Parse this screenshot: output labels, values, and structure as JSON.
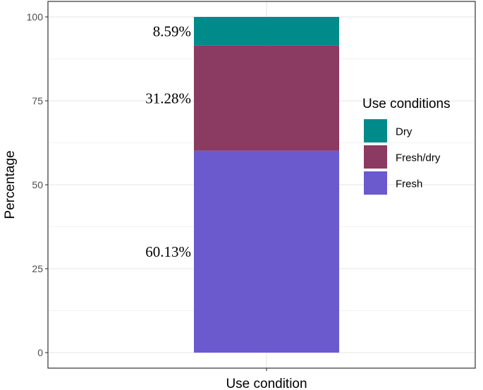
{
  "chart_data": {
    "type": "bar",
    "stacked": true,
    "categories": [
      "Use condition"
    ],
    "xlabel": "Use condition",
    "ylabel": "Percentage",
    "ylim": [
      0,
      100
    ],
    "yticks": [
      0,
      25,
      50,
      75,
      100
    ],
    "grid": true,
    "legend": {
      "title": "Use conditions",
      "placement": "right",
      "entries": [
        "Dry",
        "Fresh/dry",
        "Fresh"
      ]
    },
    "series": [
      {
        "name": "Fresh",
        "values": [
          60.13
        ],
        "label": "60.13%",
        "color": "#6a5acd"
      },
      {
        "name": "Fresh/dry",
        "values": [
          31.28
        ],
        "label": "31.28%",
        "color": "#8b3a62"
      },
      {
        "name": "Dry",
        "values": [
          8.59
        ],
        "label": "8.59%",
        "color": "#008b8b"
      }
    ]
  }
}
